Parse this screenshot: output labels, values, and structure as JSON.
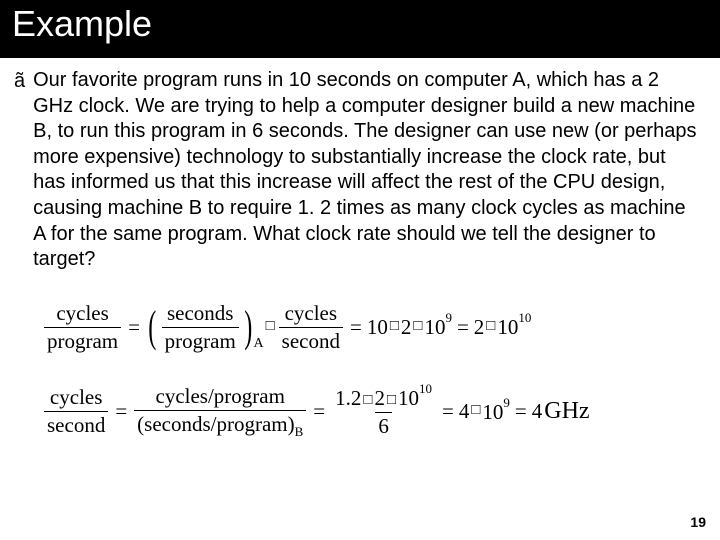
{
  "title": "Example",
  "bullet_char": "ã",
  "body": "Our favorite program runs in 10 seconds on computer A, which has a 2 GHz clock.  We are trying to help a computer designer build a new machine B, to run this program in 6 seconds.  The designer can use new (or perhaps more expensive) technology to substantially increase the clock rate, but has informed us that this increase will affect the rest of the CPU design, causing machine B to require 1. 2 times as many clock cycles as machine A for the same program.   What clock rate should we tell the designer to target?",
  "eq1": {
    "lhs_num": "cycles",
    "lhs_den": "program",
    "paren_num": "seconds",
    "paren_den": "program",
    "paren_sub": "A",
    "mid_num": "cycles",
    "mid_den": "second",
    "r1": "10",
    "r2": "2",
    "r3": "10",
    "r3_sup": "9",
    "r4": "2",
    "r5": "10",
    "r5_sup": "10",
    "square": "□"
  },
  "eq2": {
    "lhs_num": "cycles",
    "lhs_den": "second",
    "mid_numA": "cycles/program",
    "mid_denA": "(seconds/program)",
    "mid_denA_sub": "B",
    "r_num_a": "1.2",
    "r_num_b": "2",
    "r_num_c": "10",
    "r_num_c_sup": "10",
    "r_den": "6",
    "r1": "4",
    "r2": "10",
    "r2_sup": "9",
    "r3": "4",
    "unit": "GHz",
    "square": "□"
  },
  "page_number": "19"
}
